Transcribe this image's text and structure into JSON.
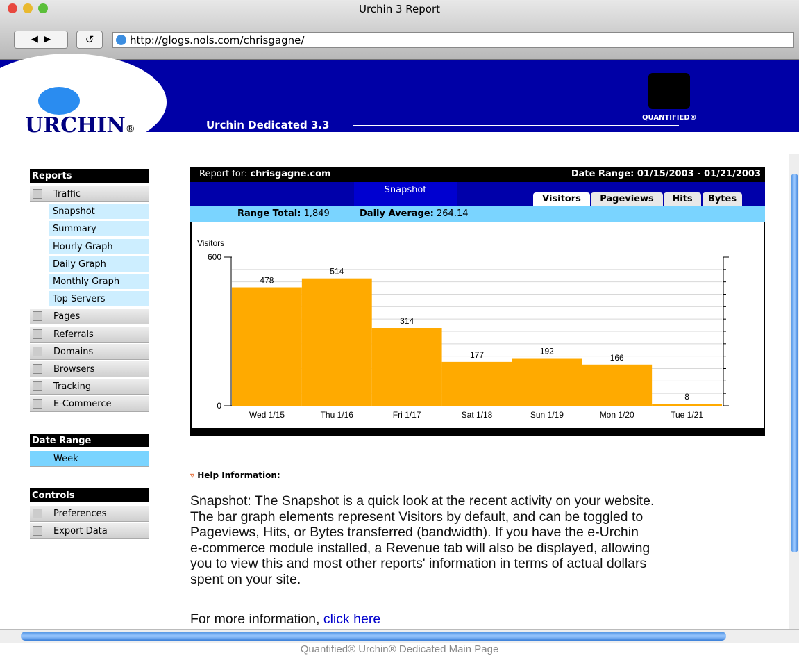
{
  "window": {
    "title": "Urchin 3 Report",
    "url": "http://glogs.nols.com/chrisgagne/"
  },
  "header": {
    "logo": "URCHIN",
    "logo_mark": "®",
    "product": "Urchin Dedicated 3.3",
    "partner": "QUANTIFIED®"
  },
  "sidebar": {
    "reports": {
      "title": "Reports",
      "open_group": "Traffic",
      "open_items": [
        "Snapshot",
        "Summary",
        "Hourly Graph",
        "Daily Graph",
        "Monthly Graph",
        "Top Servers"
      ],
      "groups": [
        "Pages",
        "Referrals",
        "Domains",
        "Browsers",
        "Tracking",
        "E-Commerce"
      ]
    },
    "date_range": {
      "title": "Date Range",
      "value": "Week"
    },
    "controls": {
      "title": "Controls",
      "items": [
        "Preferences",
        "Export Data"
      ]
    }
  },
  "report": {
    "report_for_label": "Report for:",
    "site": "chrisgagne.com",
    "date_range_label": "Date Range:",
    "date_range": "01/15/2003 - 01/21/2003",
    "tab": "Snapshot",
    "metric_tabs": [
      "Visitors",
      "Pageviews",
      "Hits",
      "Bytes"
    ],
    "range_total_label": "Range Total:",
    "range_total": "1,849",
    "daily_average_label": "Daily Average:",
    "daily_average": "264.14"
  },
  "chart_data": {
    "type": "bar",
    "y_label": "Visitors",
    "categories": [
      "Wed 1/15",
      "Thu 1/16",
      "Fri 1/17",
      "Sat 1/18",
      "Sun 1/19",
      "Mon 1/20",
      "Tue 1/21"
    ],
    "values": [
      478,
      514,
      314,
      177,
      192,
      166,
      8
    ],
    "color": "#ffaa00",
    "ylim": [
      0,
      600
    ],
    "yticks": [
      0,
      600
    ],
    "minor_yticks": [
      50,
      100,
      150,
      200,
      250,
      300,
      350,
      400,
      450,
      500,
      550
    ],
    "grid": true
  },
  "help": {
    "title": "Help Information:",
    "lines": [
      "Snapshot: The Snapshot is a quick look at the recent activity on your website.",
      "The bar graph elements represent Visitors by default, and can be toggled to",
      "Pageviews, Hits, or Bytes transferred (bandwidth). If you have the e-Urchin",
      "e-commerce module installed, a Revenue tab will also be displayed, allowing",
      "you to view this and most other reports' information in terms of actual dollars",
      "spent on your site."
    ],
    "more": "For more information,",
    "link": "click here"
  },
  "caption": "Quantified® Urchin® Dedicated Main Page"
}
